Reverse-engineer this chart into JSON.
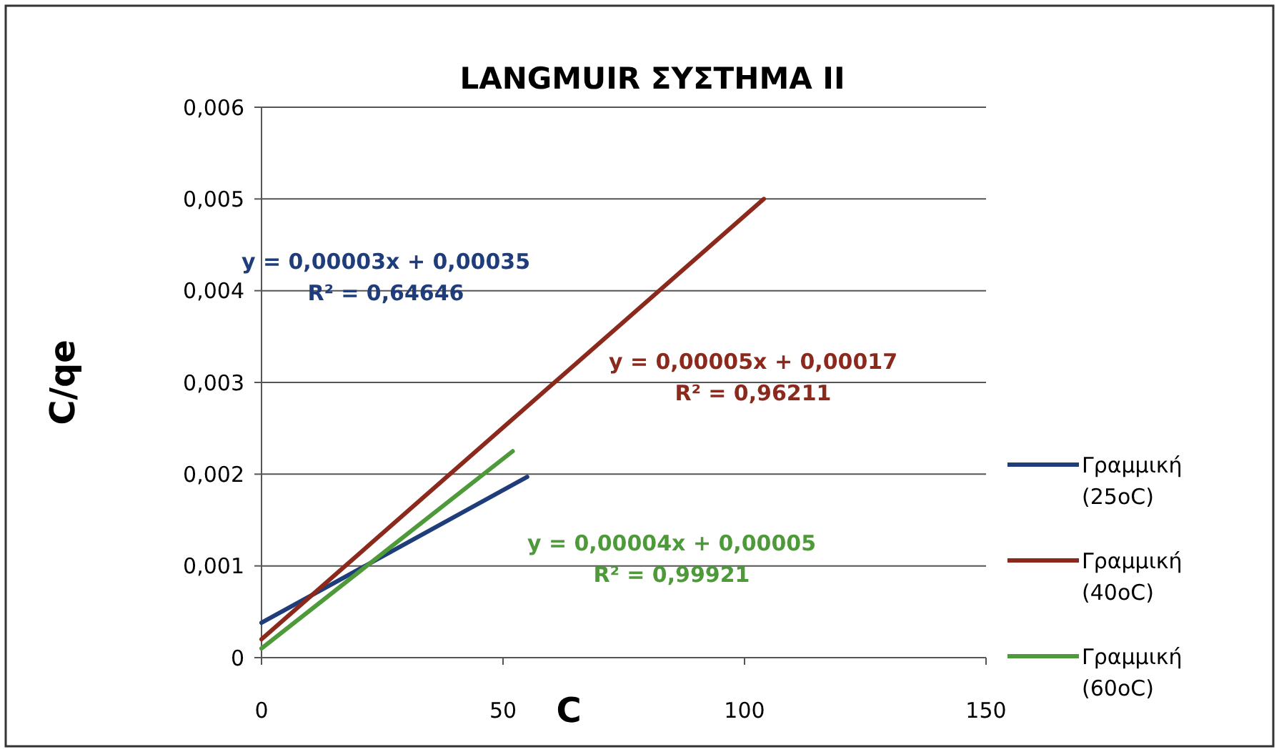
{
  "chart_data": {
    "type": "line",
    "title": "LANGMUIR ΣΥΣΤΗΜΑ II",
    "xlabel": "C",
    "ylabel": "C/qe",
    "xlim": [
      0,
      150
    ],
    "xticks": [
      0,
      50,
      100,
      150
    ],
    "ylim": [
      0,
      0.006
    ],
    "yticks": [
      {
        "value": 0,
        "label": "0"
      },
      {
        "value": 0.001,
        "label": "0,001"
      },
      {
        "value": 0.002,
        "label": "0,002"
      },
      {
        "value": 0.003,
        "label": "0,003"
      },
      {
        "value": 0.004,
        "label": "0,004"
      },
      {
        "value": 0.005,
        "label": "0,005"
      },
      {
        "value": 0.006,
        "label": "0,006"
      }
    ],
    "grid": "y",
    "legend": "right",
    "marker": "none",
    "line_style": "solid",
    "series": [
      {
        "name": "Γραμμική (25oC)",
        "color": "#1f3d7a",
        "x": [
          0,
          55
        ],
        "values": [
          0.00038,
          0.00197
        ]
      },
      {
        "name": "Γραμμική (40oC)",
        "color": "#8b2a1c",
        "x": [
          0,
          104
        ],
        "values": [
          0.0002,
          0.005
        ]
      },
      {
        "name": "Γραμμική (60oC)",
        "color": "#4e9a3a",
        "x": [
          0,
          52
        ],
        "values": [
          0.0001,
          0.00225
        ]
      }
    ],
    "annotations": [
      "y = 0,00003x + 0,00035\nR² = 0,64646",
      "y = 0,00005x + 0,00017\nR² = 0,96211",
      "y = 0,00004x + 0,00005\nR² = 0,99921"
    ]
  }
}
